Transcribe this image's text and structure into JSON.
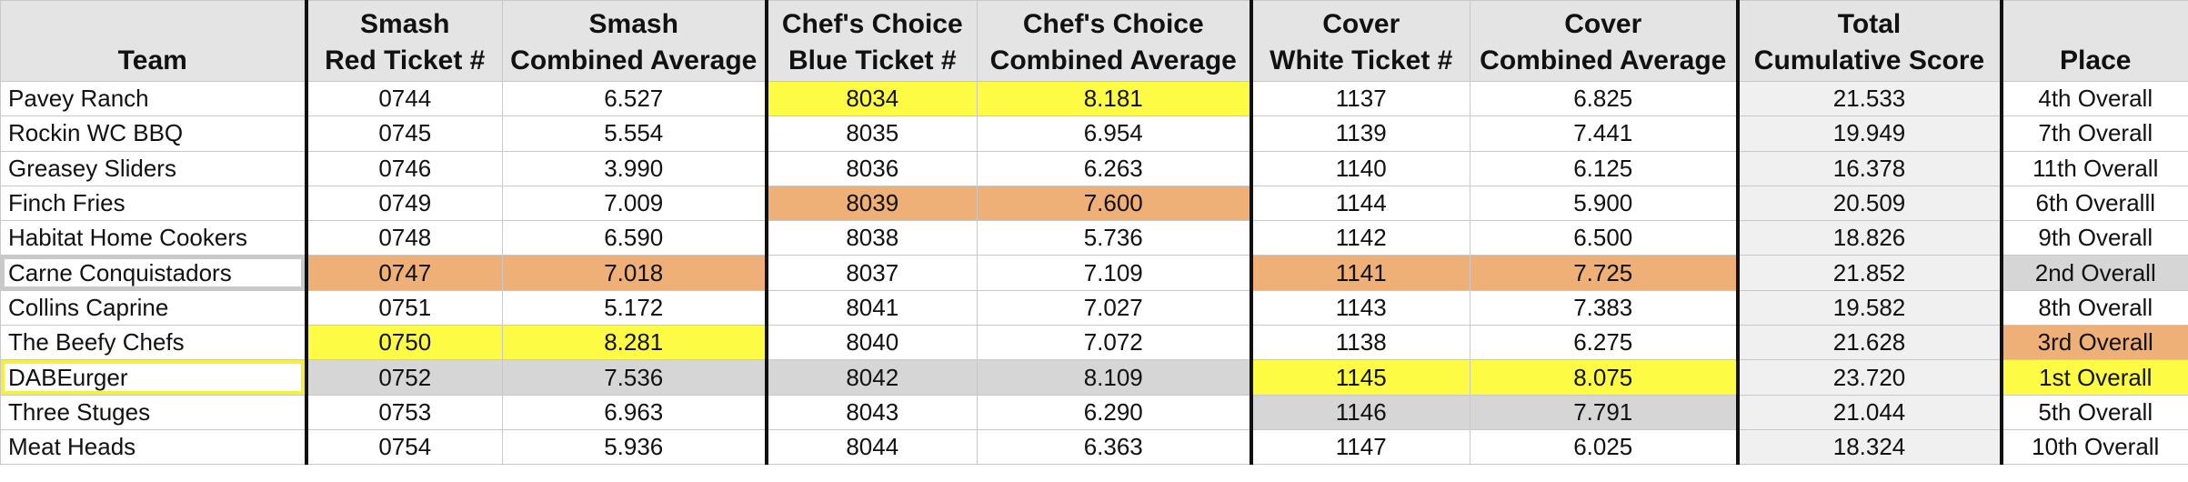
{
  "table": {
    "header": [
      [
        "Team"
      ],
      [
        "Smash",
        "Red Ticket #"
      ],
      [
        "Smash",
        "Combined Average"
      ],
      [
        "Chef's Choice",
        "Blue Ticket #"
      ],
      [
        "Chef's Choice",
        "Combined Average"
      ],
      [
        "Cover",
        "White Ticket #"
      ],
      [
        "Cover",
        "Combined Average"
      ],
      [
        "Total",
        "Cumulative Score"
      ],
      [
        "Place"
      ]
    ],
    "rows": [
      [
        "Pavey Ranch",
        "0744",
        "6.527",
        "8034",
        "8.181",
        "1137",
        "6.825",
        "21.533",
        "4th Overall"
      ],
      [
        "Rockin WC BBQ",
        "0745",
        "5.554",
        "8035",
        "6.954",
        "1139",
        "7.441",
        "19.949",
        "7th Overall"
      ],
      [
        "Greasey Sliders",
        "0746",
        "3.990",
        "8036",
        "6.263",
        "1140",
        "6.125",
        "16.378",
        "11th Overall"
      ],
      [
        "Finch Fries",
        "0749",
        "7.009",
        "8039",
        "7.600",
        "1144",
        "5.900",
        "20.509",
        "6th Overalll"
      ],
      [
        "Habitat Home Cookers",
        "0748",
        "6.590",
        "8038",
        "5.736",
        "1142",
        "6.500",
        "18.826",
        "9th Overall"
      ],
      [
        "Carne Conquistadors",
        "0747",
        "7.018",
        "8037",
        "7.109",
        "1141",
        "7.725",
        "21.852",
        "2nd Overall"
      ],
      [
        "Collins Caprine",
        "0751",
        "5.172",
        "8041",
        "7.027",
        "1143",
        "7.383",
        "19.582",
        "8th Overall"
      ],
      [
        "The Beefy Chefs",
        "0750",
        "8.281",
        "8040",
        "7.072",
        "1138",
        "6.275",
        "21.628",
        "3rd Overall"
      ],
      [
        "DABEurger",
        "0752",
        "7.536",
        "8042",
        "8.109",
        "1145",
        "8.075",
        "23.720",
        "1st Overall"
      ],
      [
        "Three Stuges",
        "0753",
        "6.963",
        "8043",
        "6.290",
        "1146",
        "7.791",
        "21.044",
        "5th Overall"
      ],
      [
        "Meat Heads",
        "0754",
        "5.936",
        "8044",
        "6.363",
        "1147",
        "6.025",
        "18.324",
        "10th Overall"
      ]
    ]
  }
}
